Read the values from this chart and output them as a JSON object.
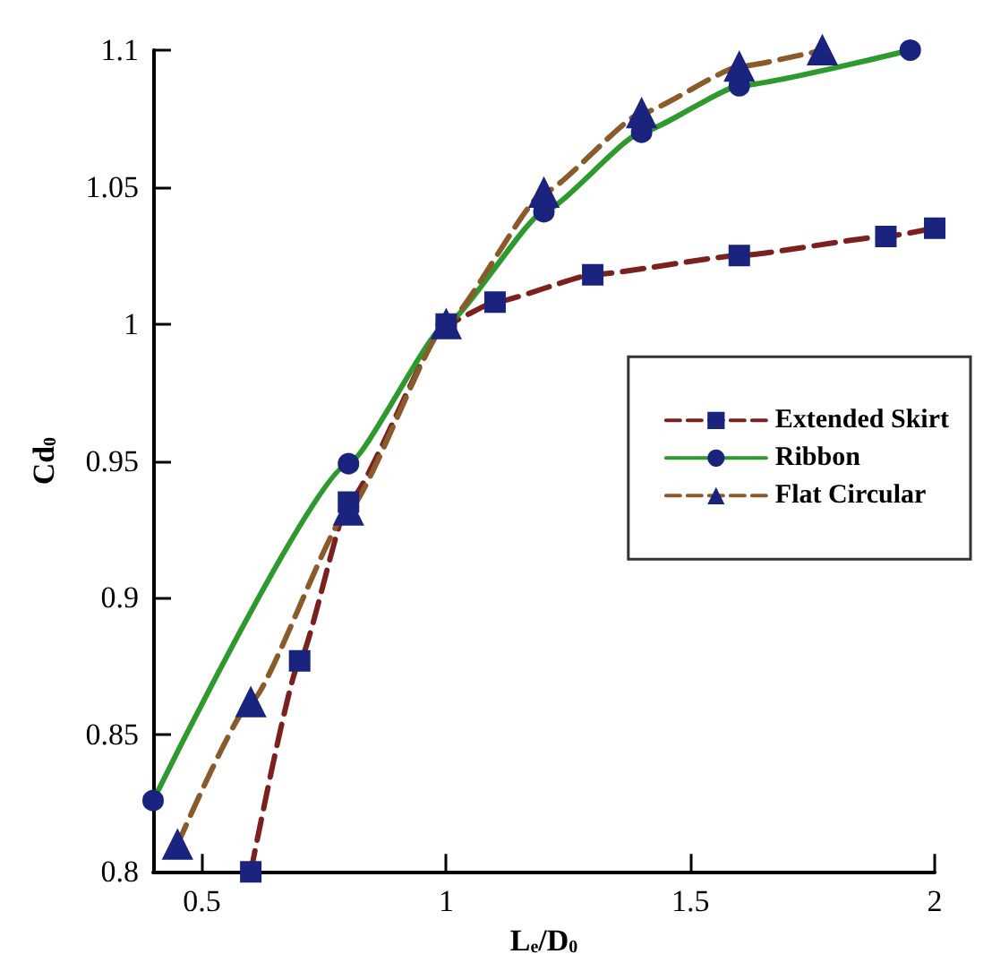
{
  "chart_data": {
    "type": "line",
    "xlabel": "L$_{e}$/D$_{0}$",
    "ylabel": "Cd$_{0}$",
    "xlim": [
      0.4,
      2
    ],
    "xticks": [
      0.5,
      1,
      1.5,
      2
    ],
    "ylim": [
      0.8,
      1.1
    ],
    "yticks": [
      0.8,
      0.85,
      0.9,
      0.95,
      1,
      1.05,
      1.1
    ],
    "grid": false,
    "legend": "right",
    "series": [
      {
        "name": "Extended Skirt",
        "color": "#7b1f1f",
        "marker": "square",
        "line_style": "dashed",
        "x": [
          0.6,
          0.7,
          0.8,
          1,
          1.1,
          1.3,
          1.6,
          1.9,
          2
        ],
        "values": [
          0.8,
          0.877,
          0.935,
          1,
          1.008,
          1.018,
          1.025,
          1.032,
          1.035
        ]
      },
      {
        "name": "Ribbon",
        "color": "#2e9a2e",
        "marker": "circle",
        "line_style": "solid",
        "x": [
          0.4,
          0.8,
          1,
          1.2,
          1.4,
          1.6,
          1.95
        ],
        "values": [
          0.826,
          0.949,
          1,
          1.041,
          1.07,
          1.087,
          1.1
        ]
      },
      {
        "name": "Flat Circular",
        "color": "#8b5a2b",
        "marker": "triangle",
        "line_style": "dashed",
        "x": [
          0.45,
          0.6,
          0.8,
          1,
          1.2,
          1.4,
          1.6,
          1.77
        ],
        "values": [
          0.81,
          0.862,
          0.932,
          1,
          1.048,
          1.077,
          1.094,
          1.1
        ]
      }
    ]
  }
}
